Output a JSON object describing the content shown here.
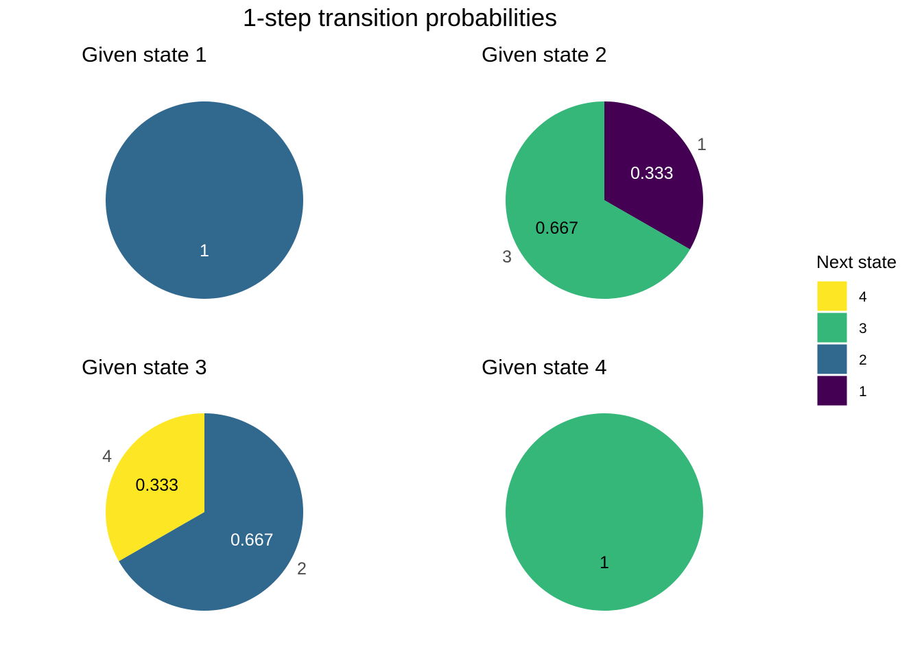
{
  "chart_data": {
    "type": "pie",
    "title": "1-step transition probabilities",
    "legend": {
      "title": "Next state",
      "placement": "right",
      "entries": [
        {
          "label": "4",
          "color": "#FDE725"
        },
        {
          "label": "3",
          "color": "#35B779"
        },
        {
          "label": "2",
          "color": "#31688E"
        },
        {
          "label": "1",
          "color": "#440154"
        }
      ]
    },
    "panels": [
      {
        "title": "Given state 1",
        "slices": [
          {
            "state": "2",
            "value": 1,
            "label": "1",
            "color": "#31688E",
            "label_color": "#ffffff"
          }
        ]
      },
      {
        "title": "Given state 2",
        "slices": [
          {
            "state": "1",
            "value": 0.333,
            "label": "0.333",
            "color": "#440154",
            "label_color": "#ffffff"
          },
          {
            "state": "3",
            "value": 0.667,
            "label": "0.667",
            "color": "#35B779",
            "label_color": "#000000"
          }
        ]
      },
      {
        "title": "Given state 3",
        "slices": [
          {
            "state": "2",
            "value": 0.667,
            "label": "0.667",
            "color": "#31688E",
            "label_color": "#ffffff"
          },
          {
            "state": "4",
            "value": 0.333,
            "label": "0.333",
            "color": "#FDE725",
            "label_color": "#000000"
          }
        ]
      },
      {
        "title": "Given state 4",
        "slices": [
          {
            "state": "3",
            "value": 1,
            "label": "1",
            "color": "#35B779",
            "label_color": "#000000"
          }
        ]
      }
    ]
  }
}
